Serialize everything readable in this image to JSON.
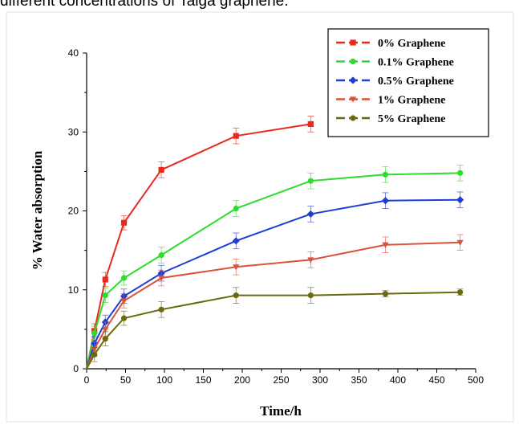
{
  "caption": "different concentrations of Talga graphene.",
  "chart_data": {
    "type": "line",
    "xlabel": "Time/h",
    "ylabel": "% Water absorption",
    "xlim": [
      0,
      500
    ],
    "ylim": [
      0,
      40
    ],
    "xticks": [
      0,
      50,
      100,
      150,
      200,
      250,
      300,
      350,
      400,
      450,
      500
    ],
    "yticks": [
      0,
      10,
      20,
      30,
      40
    ],
    "grid": false,
    "legend_position": "top-right",
    "series": [
      {
        "name": "0% Graphene",
        "color": "#e8291c",
        "marker": "square",
        "x": [
          0,
          10,
          24,
          48,
          96,
          192,
          288
        ],
        "y": [
          0,
          4.8,
          11.3,
          18.5,
          25.2,
          29.5,
          31.0
        ],
        "err": [
          0,
          0.9,
          0.9,
          0.9,
          1.0,
          1.0,
          1.0
        ]
      },
      {
        "name": "0.1% Graphene",
        "color": "#2edc2e",
        "marker": "circle",
        "x": [
          0,
          10,
          24,
          48,
          96,
          192,
          288,
          384,
          480
        ],
        "y": [
          0,
          4.5,
          9.3,
          11.5,
          14.4,
          20.3,
          23.8,
          24.6,
          24.8
        ],
        "err": [
          0,
          0.9,
          0.9,
          0.9,
          1.0,
          1.0,
          1.0,
          1.0,
          1.0
        ]
      },
      {
        "name": "0.5% Graphene",
        "color": "#1f3ed6",
        "marker": "diamond",
        "x": [
          0,
          10,
          24,
          48,
          96,
          192,
          288,
          384,
          480
        ],
        "y": [
          0,
          3.2,
          5.9,
          9.2,
          12.1,
          16.2,
          19.6,
          21.3,
          21.4
        ],
        "err": [
          0,
          0.9,
          0.9,
          0.9,
          1.0,
          1.0,
          1.0,
          1.0,
          1.0
        ]
      },
      {
        "name": "1% Graphene",
        "color": "#d9533a",
        "marker": "triangle-down",
        "x": [
          0,
          10,
          24,
          48,
          96,
          192,
          288,
          384,
          480
        ],
        "y": [
          0,
          2.5,
          5.0,
          8.6,
          11.5,
          12.9,
          13.8,
          15.7,
          16.0
        ],
        "err": [
          0,
          0.9,
          0.9,
          0.9,
          1.0,
          1.0,
          1.0,
          1.0,
          1.0
        ]
      },
      {
        "name": "5% Graphene",
        "color": "#6b6a10",
        "marker": "circle",
        "x": [
          0,
          10,
          24,
          48,
          96,
          192,
          288,
          384,
          480
        ],
        "y": [
          0,
          1.8,
          3.8,
          6.4,
          7.5,
          9.3,
          9.3,
          9.5,
          9.7
        ],
        "err": [
          0,
          0.9,
          0.9,
          0.9,
          1.0,
          1.0,
          1.0,
          0.4,
          0.4
        ]
      }
    ]
  }
}
